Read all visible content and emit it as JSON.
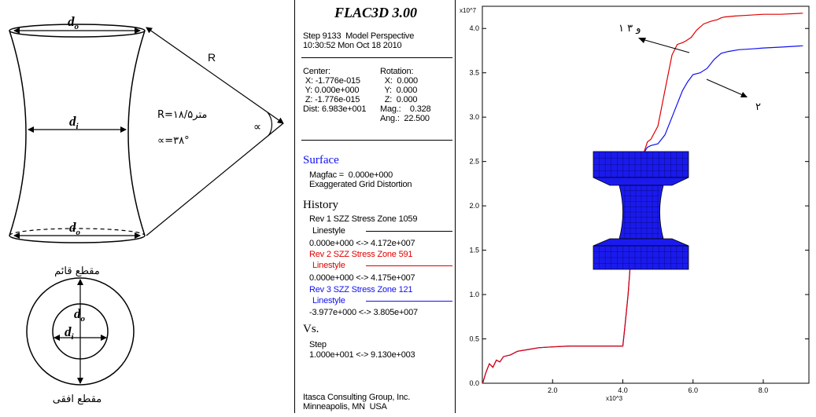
{
  "diagram": {
    "label_do_top": "d",
    "label_do_top_sub": "o",
    "label_di": "d",
    "label_di_sub": "i",
    "label_do_bottom": "d",
    "label_do_bottom_sub": "o",
    "label_R": "R",
    "label_alpha": "∝",
    "formula_R": "R=۱۸/۵متر",
    "formula_alpha": "∝=۳۸°",
    "caption_vertical": "مقطع قائم",
    "circle_do": "d",
    "circle_do_sub": "o",
    "circle_di": "d",
    "circle_di_sub": "i",
    "caption_horizontal": "مقطع افقی"
  },
  "panel": {
    "title": "FLAC3D 3.00",
    "step_line": "Step 9133  Model Perspective",
    "time_line": "10:30:52 Mon Oct 18 2010",
    "center_label": "Center:",
    "center_x": " X: -1.776e-015",
    "center_y": " Y: 0.000e+000",
    "center_z": " Z: -1.776e-015",
    "dist": "Dist: 6.983e+001",
    "rotation_label": "Rotation:",
    "rot_x": "  X:  0.000",
    "rot_y": "  Y:  0.000",
    "rot_z": "  Z:  0.000",
    "mag": "Mag.:    0.328",
    "ang": "Ang.:  22.500",
    "surface_heading": "Surface",
    "magfac": "Magfac =  0.000e+000",
    "exaggerated": "Exaggerated Grid Distortion",
    "history_heading": "History",
    "rev1": "Rev 1 SZZ Stress Zone 1059",
    "rev1_linestyle": "Linestyle",
    "rev1_range": "0.000e+000 <-> 4.172e+007",
    "rev2": "Rev 2 SZZ Stress Zone 591",
    "rev2_linestyle": "Linestyle",
    "rev2_range": "0.000e+000 <-> 4.175e+007",
    "rev3": "Rev 3 SZZ Stress Zone 121",
    "rev3_linestyle": "Linestyle",
    "rev3_range": "-3.977e+000 <-> 3.805e+007",
    "vs_heading": "Vs.",
    "vs_step": "Step",
    "vs_range": "1.000e+001 <-> 9.130e+003",
    "company": "Itasca Consulting Group, Inc.",
    "location": "Minneapolis, MN  USA"
  },
  "colors": {
    "rev1": "#000000",
    "rev2": "#e00000",
    "rev3": "#1010f0",
    "mesh": "#1a1aee"
  },
  "chart_data": {
    "type": "line",
    "title": "",
    "xlabel": "x10^3",
    "ylabel": "x10^7",
    "xlim": [
      0,
      9.3
    ],
    "ylim": [
      0,
      4.25
    ],
    "xticks": [
      "2.0",
      "4.0",
      "6.0",
      "8.0"
    ],
    "yticks": [
      "0.0",
      "0.5",
      "1.0",
      "1.5",
      "2.0",
      "2.5",
      "3.0",
      "3.5",
      "4.0"
    ],
    "annotations": [
      {
        "text": "۱ و ۳"
      },
      {
        "text": "۲"
      }
    ],
    "series": [
      {
        "color": "#e00000",
        "x": [
          0.01,
          0.1,
          0.2,
          0.3,
          0.4,
          0.5,
          0.6,
          0.8,
          1.0,
          1.3,
          1.6,
          2.0,
          2.5,
          3.0,
          3.5,
          4.0,
          4.05,
          4.15,
          4.3,
          4.45,
          4.6,
          4.7,
          4.8,
          5.0,
          5.2,
          5.4,
          5.55,
          5.7,
          5.8,
          5.95,
          6.1,
          6.3,
          6.5,
          6.7,
          6.8,
          6.9,
          7.2,
          7.6,
          8.0,
          8.5,
          9.13
        ],
        "y": [
          0.0,
          0.12,
          0.22,
          0.18,
          0.26,
          0.24,
          0.3,
          0.32,
          0.36,
          0.38,
          0.4,
          0.41,
          0.42,
          0.42,
          0.42,
          0.42,
          0.6,
          1.0,
          1.8,
          2.4,
          2.6,
          2.72,
          2.75,
          2.9,
          3.3,
          3.7,
          3.82,
          3.84,
          3.86,
          3.9,
          3.98,
          4.05,
          4.08,
          4.1,
          4.12,
          4.13,
          4.14,
          4.15,
          4.16,
          4.16,
          4.172
        ]
      },
      {
        "color": "#1010f0",
        "x": [
          0.01,
          0.1,
          0.2,
          0.3,
          0.4,
          0.5,
          0.6,
          0.8,
          1.0,
          1.3,
          1.6,
          2.0,
          2.5,
          3.0,
          3.5,
          4.0,
          4.05,
          4.15,
          4.3,
          4.45,
          4.6,
          4.7,
          4.8,
          5.0,
          5.2,
          5.4,
          5.55,
          5.7,
          5.85,
          6.0,
          6.2,
          6.4,
          6.6,
          6.8,
          7.0,
          7.3,
          7.7,
          8.0,
          8.5,
          9.13
        ],
        "y": [
          0.0,
          0.12,
          0.22,
          0.18,
          0.26,
          0.24,
          0.3,
          0.32,
          0.36,
          0.38,
          0.4,
          0.41,
          0.42,
          0.42,
          0.42,
          0.42,
          0.6,
          1.0,
          1.8,
          2.4,
          2.6,
          2.66,
          2.68,
          2.7,
          2.8,
          3.0,
          3.15,
          3.3,
          3.4,
          3.48,
          3.5,
          3.55,
          3.65,
          3.72,
          3.74,
          3.76,
          3.77,
          3.78,
          3.79,
          3.805
        ]
      }
    ]
  }
}
